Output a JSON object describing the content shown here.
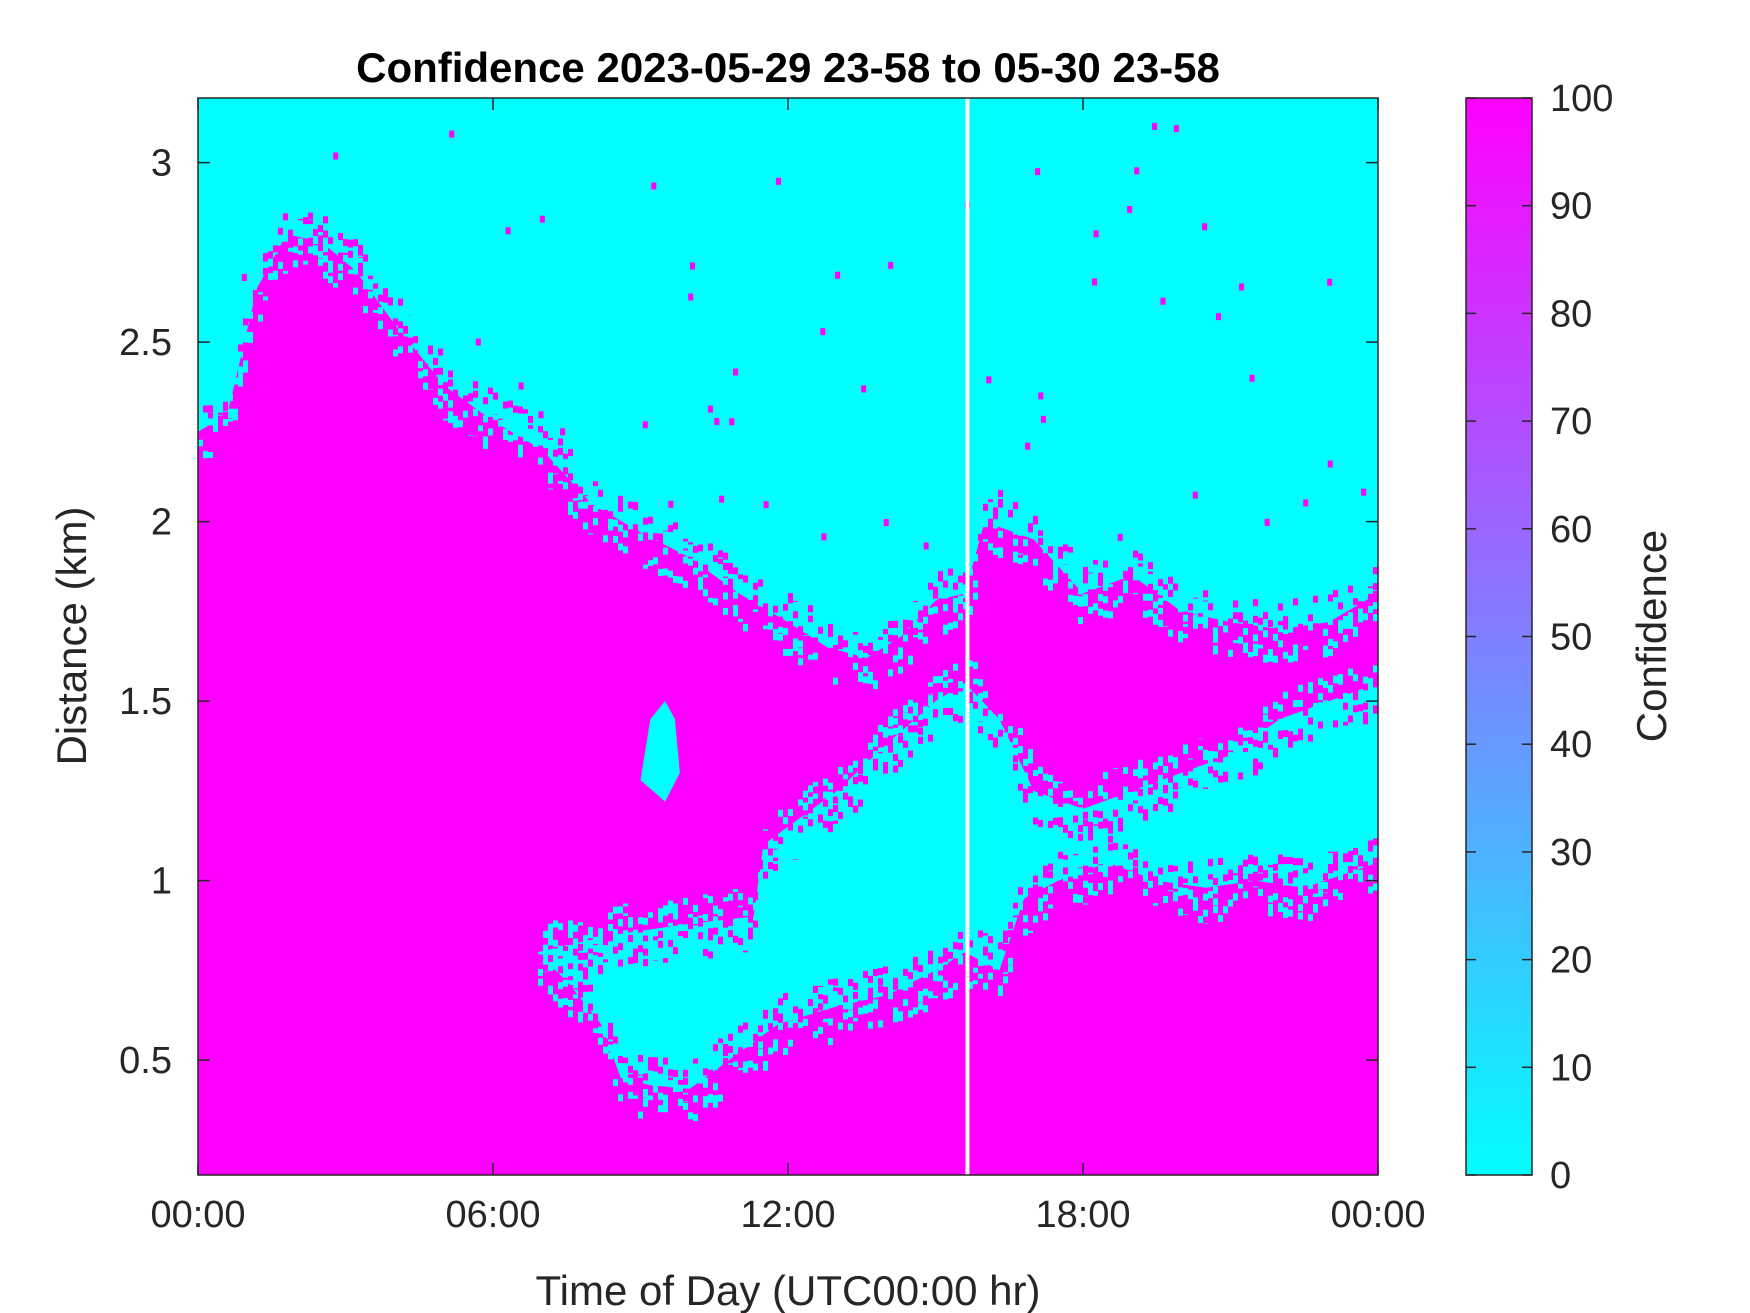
{
  "chart_data": {
    "type": "heatmap",
    "title": "Confidence 2023-05-29 23-58 to 05-30 23-58",
    "xlabel": "Time of Day (UTC00:00 hr)",
    "ylabel": "Distance (km)",
    "colorbar_label": "Confidence",
    "x_range_hours": [
      0,
      24
    ],
    "y_range_km": [
      0.18,
      3.18
    ],
    "x_ticks": [
      {
        "value": 0,
        "label": "00:00"
      },
      {
        "value": 6,
        "label": "06:00"
      },
      {
        "value": 12,
        "label": "12:00"
      },
      {
        "value": 18,
        "label": "18:00"
      },
      {
        "value": 24,
        "label": "00:00"
      }
    ],
    "y_ticks": [
      {
        "value": 0.5,
        "label": "0.5"
      },
      {
        "value": 1.0,
        "label": "1"
      },
      {
        "value": 1.5,
        "label": "1.5"
      },
      {
        "value": 2.0,
        "label": "2"
      },
      {
        "value": 2.5,
        "label": "2.5"
      },
      {
        "value": 3.0,
        "label": "3"
      }
    ],
    "colorbar_range": [
      0,
      100
    ],
    "colorbar_ticks": [
      {
        "value": 0,
        "label": "0"
      },
      {
        "value": 10,
        "label": "10"
      },
      {
        "value": 20,
        "label": "20"
      },
      {
        "value": 30,
        "label": "30"
      },
      {
        "value": 40,
        "label": "40"
      },
      {
        "value": 50,
        "label": "50"
      },
      {
        "value": 60,
        "label": "60"
      },
      {
        "value": 70,
        "label": "70"
      },
      {
        "value": 80,
        "label": "80"
      },
      {
        "value": 90,
        "label": "90"
      },
      {
        "value": 100,
        "label": "100"
      }
    ],
    "colormap": {
      "low": "#00ffff",
      "high": "#ff00ff"
    },
    "data_gap_hour": 15.65,
    "regions": {
      "low_value": 0,
      "high_value": 100,
      "boundary_points_hours_km": {
        "upper_high_boundary": [
          [
            0,
            2.25
          ],
          [
            0.6,
            2.3
          ],
          [
            1.2,
            2.65
          ],
          [
            1.8,
            2.8
          ],
          [
            2.5,
            2.78
          ],
          [
            3.2,
            2.7
          ],
          [
            4.0,
            2.55
          ],
          [
            5.0,
            2.38
          ],
          [
            6.0,
            2.28
          ],
          [
            7.0,
            2.2
          ],
          [
            8.0,
            2.05
          ],
          [
            9.0,
            1.97
          ],
          [
            10.0,
            1.9
          ],
          [
            11.0,
            1.8
          ],
          [
            12.0,
            1.72
          ],
          [
            12.8,
            1.65
          ],
          [
            13.6,
            1.62
          ],
          [
            14.3,
            1.68
          ],
          [
            15.0,
            1.78
          ],
          [
            15.6,
            1.8
          ],
          [
            16.0,
            2.0
          ],
          [
            17.0,
            1.95
          ],
          [
            18.0,
            1.8
          ],
          [
            19.0,
            1.85
          ],
          [
            20.0,
            1.75
          ],
          [
            21.0,
            1.72
          ],
          [
            22.0,
            1.7
          ],
          [
            23.0,
            1.72
          ],
          [
            24.0,
            1.8
          ]
        ],
        "lower_low_region_top": [
          [
            6.9,
            0.8
          ],
          [
            7.5,
            0.82
          ],
          [
            8.5,
            0.85
          ],
          [
            10.0,
            0.88
          ],
          [
            11.3,
            0.9
          ],
          [
            11.5,
            1.1
          ],
          [
            12.0,
            1.15
          ],
          [
            13.0,
            1.25
          ],
          [
            14.0,
            1.38
          ],
          [
            15.0,
            1.5
          ],
          [
            15.6,
            1.55
          ],
          [
            16.3,
            1.45
          ],
          [
            17.0,
            1.25
          ],
          [
            18.0,
            1.2
          ],
          [
            19.0,
            1.25
          ],
          [
            20.0,
            1.3
          ],
          [
            21.0,
            1.35
          ],
          [
            22.0,
            1.45
          ],
          [
            23.0,
            1.5
          ],
          [
            24.0,
            1.55
          ]
        ],
        "lower_low_region_bottom": [
          [
            6.9,
            0.8
          ],
          [
            7.5,
            0.72
          ],
          [
            8.2,
            0.6
          ],
          [
            8.6,
            0.45
          ],
          [
            9.2,
            0.43
          ],
          [
            10.0,
            0.42
          ],
          [
            10.8,
            0.5
          ],
          [
            11.8,
            0.6
          ],
          [
            13.0,
            0.65
          ],
          [
            14.0,
            0.68
          ],
          [
            15.0,
            0.75
          ],
          [
            15.6,
            0.8
          ],
          [
            16.3,
            0.75
          ],
          [
            16.8,
            0.95
          ],
          [
            17.5,
            1.0
          ],
          [
            18.5,
            1.05
          ],
          [
            19.5,
            1.0
          ],
          [
            20.5,
            0.98
          ],
          [
            21.5,
            1.0
          ],
          [
            22.5,
            0.98
          ],
          [
            24.0,
            1.05
          ]
        ],
        "small_low_patch": [
          [
            9.0,
            1.28
          ],
          [
            9.2,
            1.45
          ],
          [
            9.5,
            1.5
          ],
          [
            9.7,
            1.45
          ],
          [
            9.8,
            1.3
          ],
          [
            9.5,
            1.22
          ]
        ]
      }
    }
  }
}
